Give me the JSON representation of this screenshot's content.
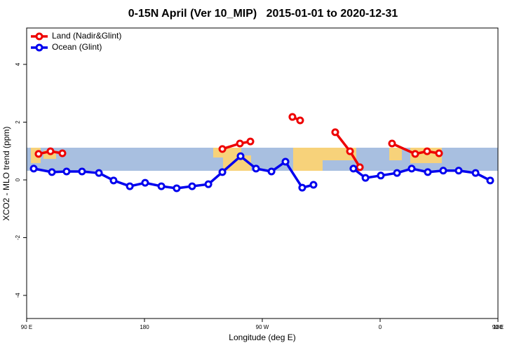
{
  "chart_data": {
    "type": "line",
    "title": "0-15N April (Ver 10_MIP)   2015-01-01 to 2020-12-31",
    "x_label": "Longitude (deg E)",
    "y_label": "XCO2 - MLO trend (ppm)",
    "xlim": [
      90,
      450
    ],
    "xticks": [
      {
        "value": 90,
        "label": "90 E"
      },
      {
        "value": 180,
        "label": "180"
      },
      {
        "value": 270,
        "label": "90 W"
      },
      {
        "value": 360,
        "label": "0"
      },
      {
        "value": 450,
        "label": "90 E"
      },
      {
        "value": 540,
        "label": "180"
      }
    ],
    "ylim": [
      -4.8,
      5.26
    ],
    "yticks": [
      -4,
      -2,
      0,
      2,
      4
    ],
    "legend": "top-left",
    "series": [
      {
        "name": "Land (Nadir&Glint)",
        "color": "#ee0000",
        "x": [
          99.1,
          108.2,
          117.3,
          null,
          239.5,
          252.9,
          260.9,
          null,
          293,
          298.9,
          null,
          325.7,
          337,
          344.5,
          null,
          369.1,
          386.8,
          395.9,
          405
        ],
        "values": [
          0.9,
          0.99,
          0.92,
          null,
          1.07,
          1.26,
          1.33,
          null,
          2.18,
          2.06,
          null,
          1.65,
          0.99,
          0.44,
          null,
          1.26,
          0.9,
          0.99,
          0.92
        ]
      },
      {
        "name": "Ocean (Glint)",
        "color": "#0000ee",
        "x": [
          95.4,
          109.3,
          120.5,
          132.3,
          145.2,
          156.4,
          168.8,
          180.5,
          192.9,
          204.6,
          216.4,
          228.8,
          239.5,
          253.4,
          265.2,
          277,
          287.7,
          300.5,
          309.1,
          null,
          339.6,
          348.8,
          360.5,
          372.9,
          384.1,
          396.4,
          408.2,
          420,
          432.9,
          444.1
        ],
        "values": [
          0.39,
          0.27,
          0.29,
          0.29,
          0.24,
          -0.02,
          -0.22,
          -0.1,
          -0.22,
          -0.29,
          -0.22,
          -0.15,
          0.27,
          0.82,
          0.39,
          0.29,
          0.63,
          -0.27,
          -0.17,
          null,
          0.39,
          0.07,
          0.15,
          0.24,
          0.39,
          0.27,
          0.32,
          0.32,
          0.24,
          -0.02
        ]
      }
    ]
  }
}
